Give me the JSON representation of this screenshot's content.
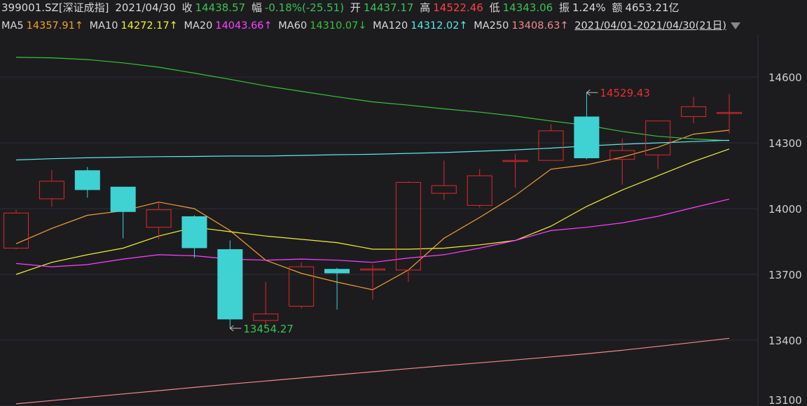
{
  "header": {
    "code": "399001.SZ[深证成指]",
    "date": "2021/04/30",
    "close_label": "收",
    "close_value": "14438.57",
    "change_label": "幅",
    "change_value": "-0.18%(-25.51)",
    "open_label": "开",
    "open_value": "14437.17",
    "high_label": "高",
    "high_value": "14522.46",
    "low_label": "低",
    "low_value": "14343.06",
    "amp_label": "振",
    "amp_value": "1.24%",
    "amount_label": "额",
    "amount_value": "4653.21亿"
  },
  "ma_bar": {
    "items": [
      {
        "label": "MA5",
        "value": "14357.91↑"
      },
      {
        "label": "MA10",
        "value": "14272.17↑"
      },
      {
        "label": "MA20",
        "value": "14043.66↑"
      },
      {
        "label": "MA60",
        "value": "14310.07↓"
      },
      {
        "label": "MA120",
        "value": "14312.02↑"
      },
      {
        "label": "MA250",
        "value": "13408.63↑"
      }
    ],
    "range": "2021/04/01-2021/04/30(21日)"
  },
  "colors": {
    "background": "#1c1c1f",
    "up": "#e02828",
    "down": "#3fd2d2",
    "ma5": "#f0a030",
    "ma10": "#f0f032",
    "ma20": "#ff40ff",
    "ma60": "#38c238",
    "ma120": "#5ce8e8",
    "ma250": "#f08a8a",
    "grid": "#2e2e33"
  },
  "chart_data": {
    "type": "candlestick",
    "ylim": [
      13100,
      14700
    ],
    "yticks": [
      14600,
      14300,
      14000,
      13700,
      13400,
      13100
    ],
    "grid": true,
    "candles": [
      {
        "open": 13820,
        "close": 13980,
        "high": 13995,
        "low": 13815
      },
      {
        "open": 14045,
        "close": 14125,
        "high": 14175,
        "low": 14010
      },
      {
        "open": 14175,
        "close": 14085,
        "high": 14190,
        "low": 14050
      },
      {
        "open": 14100,
        "close": 13985,
        "high": 14100,
        "low": 13865
      },
      {
        "open": 13915,
        "close": 13995,
        "high": 14030,
        "low": 13860
      },
      {
        "open": 13965,
        "close": 13820,
        "high": 13970,
        "low": 13775
      },
      {
        "open": 13815,
        "close": 13495,
        "high": 13855,
        "low": 13454.27
      },
      {
        "open": 13490,
        "close": 13520,
        "high": 13665,
        "low": 13470
      },
      {
        "open": 13555,
        "close": 13735,
        "high": 13755,
        "low": 13545
      },
      {
        "open": 13725,
        "close": 13705,
        "high": 13730,
        "low": 13540
      },
      {
        "open": 13720,
        "close": 13725,
        "high": 13745,
        "low": 13585
      },
      {
        "open": 13720,
        "close": 14120,
        "high": 14125,
        "low": 13665
      },
      {
        "open": 14070,
        "close": 14105,
        "high": 14220,
        "low": 14040
      },
      {
        "open": 14015,
        "close": 14150,
        "high": 14180,
        "low": 14005
      },
      {
        "open": 14215,
        "close": 14220,
        "high": 14250,
        "low": 14095
      },
      {
        "open": 14220,
        "close": 14355,
        "high": 14385,
        "low": 14220
      },
      {
        "open": 14420,
        "close": 14230,
        "high": 14529.43,
        "low": 14225
      },
      {
        "open": 14225,
        "close": 14265,
        "high": 14320,
        "low": 14110
      },
      {
        "open": 14245,
        "close": 14400,
        "high": 14400,
        "low": 14180
      },
      {
        "open": 14420,
        "close": 14465,
        "high": 14510,
        "low": 14390
      },
      {
        "open": 14437.17,
        "close": 14438.57,
        "high": 14522.46,
        "low": 14343.06
      }
    ],
    "series": [
      {
        "name": "MA5",
        "values": [
          13840,
          13910,
          13970,
          13990,
          14030,
          14000,
          13900,
          13765,
          13705,
          13665,
          13630,
          13720,
          13865,
          13960,
          14060,
          14180,
          14200,
          14235,
          14280,
          14340,
          14357.91
        ]
      },
      {
        "name": "MA10",
        "values": [
          13700,
          13755,
          13790,
          13820,
          13875,
          13915,
          13895,
          13875,
          13860,
          13845,
          13815,
          13815,
          13820,
          13835,
          13855,
          13920,
          14010,
          14085,
          14150,
          14215,
          14272.17
        ]
      },
      {
        "name": "MA20",
        "values": [
          13750,
          13735,
          13745,
          13770,
          13790,
          13785,
          13770,
          13765,
          13770,
          13765,
          13755,
          13775,
          13790,
          13820,
          13855,
          13900,
          13915,
          13935,
          13965,
          14005,
          14043.66
        ]
      },
      {
        "name": "MA60",
        "values": [
          14690,
          14688,
          14680,
          14665,
          14645,
          14618,
          14590,
          14560,
          14535,
          14510,
          14487,
          14472,
          14455,
          14440,
          14422,
          14400,
          14380,
          14352,
          14330,
          14318,
          14310.07
        ]
      },
      {
        "name": "MA120",
        "values": [
          14222,
          14228,
          14232,
          14235,
          14237,
          14238,
          14240,
          14240,
          14243,
          14246,
          14248,
          14252,
          14256,
          14262,
          14268,
          14276,
          14286,
          14294,
          14300,
          14306,
          14312.02
        ]
      },
      {
        "name": "MA250",
        "values": [
          13110,
          13125,
          13140,
          13155,
          13170,
          13185,
          13200,
          13214,
          13228,
          13242,
          13256,
          13270,
          13284,
          13297,
          13310,
          13324,
          13338,
          13354,
          13372,
          13390,
          13408.63
        ]
      }
    ],
    "annotations": [
      {
        "text": "14529.43",
        "value": 14529.43,
        "candle": 16,
        "kind": "high"
      },
      {
        "text": "13454.27",
        "value": 13454.27,
        "candle": 6,
        "kind": "low"
      }
    ]
  }
}
